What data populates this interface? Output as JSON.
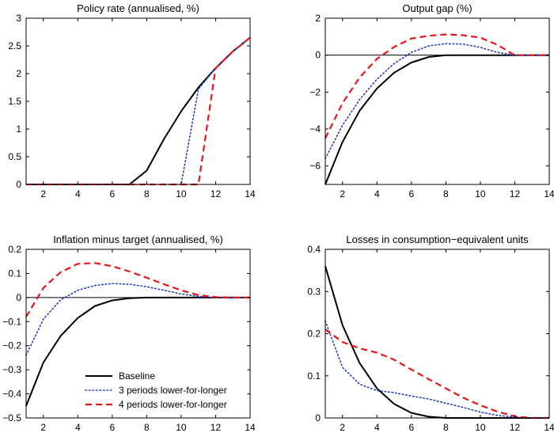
{
  "chart_data": [
    {
      "type": "line",
      "title": "Policy rate (annualised, %)",
      "xlim": [
        1,
        14
      ],
      "ylim": [
        0,
        3
      ],
      "xticks": [
        2,
        4,
        6,
        8,
        10,
        12,
        14
      ],
      "yticks": [
        0,
        0.5,
        1,
        1.5,
        2,
        2.5,
        3
      ],
      "ytick_labels": [
        "0",
        "0.5",
        "1",
        "1.5",
        "2",
        "2.5",
        "3"
      ],
      "zero_line": false,
      "series": [
        {
          "name": "Baseline",
          "color": "#000000",
          "style": "solid",
          "x": [
            1,
            2,
            3,
            4,
            5,
            6,
            7,
            8,
            9,
            10,
            11,
            12,
            13,
            14
          ],
          "y": [
            0,
            0,
            0,
            0,
            0,
            0,
            0,
            0.25,
            0.82,
            1.32,
            1.75,
            2.1,
            2.4,
            2.65
          ]
        },
        {
          "name": "3 periods lower-for-longer",
          "color": "#1f3fbf",
          "style": "dotted",
          "x": [
            1,
            2,
            3,
            4,
            5,
            6,
            7,
            8,
            9,
            10,
            11,
            12,
            13,
            14
          ],
          "y": [
            0,
            0,
            0,
            0,
            0,
            0,
            0,
            0,
            0,
            0,
            1.72,
            2.1,
            2.4,
            2.65
          ]
        },
        {
          "name": "4 periods lower-for-longer",
          "color": "#e8161b",
          "style": "dashed",
          "x": [
            1,
            2,
            3,
            4,
            5,
            6,
            7,
            8,
            9,
            10,
            11,
            12,
            13,
            14
          ],
          "y": [
            0,
            0,
            0,
            0,
            0,
            0,
            0,
            0,
            0,
            0,
            0,
            2.1,
            2.4,
            2.65
          ]
        }
      ]
    },
    {
      "type": "line",
      "title": "Output gap (%)",
      "xlim": [
        1,
        14
      ],
      "ylim": [
        -7,
        2
      ],
      "xticks": [
        2,
        4,
        6,
        8,
        10,
        12,
        14
      ],
      "yticks": [
        -6,
        -4,
        -2,
        0,
        2
      ],
      "ytick_labels": [
        "−6",
        "−4",
        "−2",
        "0",
        "2"
      ],
      "zero_line": true,
      "series": [
        {
          "name": "Baseline",
          "color": "#000000",
          "style": "solid",
          "x": [
            1,
            2,
            3,
            4,
            5,
            6,
            7,
            8,
            9,
            10,
            11,
            12,
            13,
            14
          ],
          "y": [
            -7,
            -4.7,
            -3.0,
            -1.8,
            -0.95,
            -0.4,
            -0.1,
            0,
            0,
            0,
            0,
            0,
            0,
            0
          ]
        },
        {
          "name": "3 periods lower-for-longer",
          "color": "#1f3fbf",
          "style": "dotted",
          "x": [
            1,
            2,
            3,
            4,
            5,
            6,
            7,
            8,
            9,
            10,
            11,
            12,
            13,
            14
          ],
          "y": [
            -5.6,
            -3.8,
            -2.4,
            -1.3,
            -0.45,
            0.15,
            0.5,
            0.62,
            0.6,
            0.42,
            0.15,
            0,
            0,
            0
          ]
        },
        {
          "name": "4 periods lower-for-longer",
          "color": "#e8161b",
          "style": "dashed",
          "x": [
            1,
            2,
            3,
            4,
            5,
            6,
            7,
            8,
            9,
            10,
            11,
            12,
            13,
            14
          ],
          "y": [
            -4.5,
            -2.6,
            -1.2,
            -0.2,
            0.45,
            0.9,
            1.05,
            1.12,
            1.08,
            0.95,
            0.55,
            0,
            0,
            0
          ]
        }
      ]
    },
    {
      "type": "line",
      "title": "Inflation minus target (annualised, %)",
      "xlim": [
        1,
        14
      ],
      "ylim": [
        -0.5,
        0.2
      ],
      "xticks": [
        2,
        4,
        6,
        8,
        10,
        12,
        14
      ],
      "yticks": [
        -0.5,
        -0.4,
        -0.3,
        -0.2,
        -0.1,
        0,
        0.1,
        0.2
      ],
      "ytick_labels": [
        "−0.5",
        "−0.4",
        "−0.3",
        "−0.2",
        "−0.1",
        "0",
        "0.1",
        "0.2"
      ],
      "zero_line": true,
      "legend": {
        "position": "lower-center",
        "entries": [
          "Baseline",
          "3 periods lower-for-longer",
          "4 periods lower-for-longer"
        ]
      },
      "series": [
        {
          "name": "Baseline",
          "color": "#000000",
          "style": "solid",
          "x": [
            1,
            2,
            3,
            4,
            5,
            6,
            7,
            8,
            9,
            10,
            11,
            12,
            13,
            14
          ],
          "y": [
            -0.45,
            -0.27,
            -0.16,
            -0.085,
            -0.035,
            -0.012,
            -0.003,
            0,
            0,
            0,
            0,
            0,
            0,
            0
          ]
        },
        {
          "name": "3 periods lower-for-longer",
          "color": "#1f3fbf",
          "style": "dotted",
          "x": [
            1,
            2,
            3,
            4,
            5,
            6,
            7,
            8,
            9,
            10,
            11,
            12,
            13,
            14
          ],
          "y": [
            -0.24,
            -0.09,
            -0.01,
            0.03,
            0.05,
            0.058,
            0.055,
            0.045,
            0.03,
            0.015,
            0.004,
            0,
            0,
            0
          ]
        },
        {
          "name": "4 periods lower-for-longer",
          "color": "#e8161b",
          "style": "dashed",
          "x": [
            1,
            2,
            3,
            4,
            5,
            6,
            7,
            8,
            9,
            10,
            11,
            12,
            13,
            14
          ],
          "y": [
            -0.08,
            0.04,
            0.105,
            0.14,
            0.143,
            0.13,
            0.108,
            0.082,
            0.055,
            0.03,
            0.01,
            0.002,
            0,
            0
          ]
        }
      ]
    },
    {
      "type": "line",
      "title": "Losses in consumption−equivalent units",
      "xlim": [
        1,
        14
      ],
      "ylim": [
        0,
        0.4
      ],
      "xticks": [
        2,
        4,
        6,
        8,
        10,
        12,
        14
      ],
      "yticks": [
        0,
        0.1,
        0.2,
        0.3,
        0.4
      ],
      "ytick_labels": [
        "0",
        "0.1",
        "0.2",
        "0.3",
        "0.4"
      ],
      "zero_line": false,
      "series": [
        {
          "name": "Baseline",
          "color": "#000000",
          "style": "solid",
          "x": [
            1,
            2,
            3,
            4,
            5,
            6,
            7,
            8,
            9,
            10,
            11,
            12,
            13,
            14
          ],
          "y": [
            0.36,
            0.22,
            0.13,
            0.07,
            0.033,
            0.012,
            0.003,
            0,
            0,
            0,
            0,
            0,
            0,
            0
          ]
        },
        {
          "name": "3 periods lower-for-longer",
          "color": "#1f3fbf",
          "style": "dotted",
          "x": [
            1,
            2,
            3,
            4,
            5,
            6,
            7,
            8,
            9,
            10,
            11,
            12,
            13,
            14
          ],
          "y": [
            0.23,
            0.12,
            0.08,
            0.065,
            0.06,
            0.052,
            0.045,
            0.035,
            0.025,
            0.014,
            0.006,
            0.002,
            0,
            0
          ]
        },
        {
          "name": "4 periods lower-for-longer",
          "color": "#e8161b",
          "style": "dashed",
          "x": [
            1,
            2,
            3,
            4,
            5,
            6,
            7,
            8,
            9,
            10,
            11,
            12,
            13,
            14
          ],
          "y": [
            0.21,
            0.18,
            0.165,
            0.155,
            0.138,
            0.115,
            0.092,
            0.07,
            0.048,
            0.03,
            0.015,
            0.004,
            0,
            0
          ]
        }
      ]
    }
  ]
}
